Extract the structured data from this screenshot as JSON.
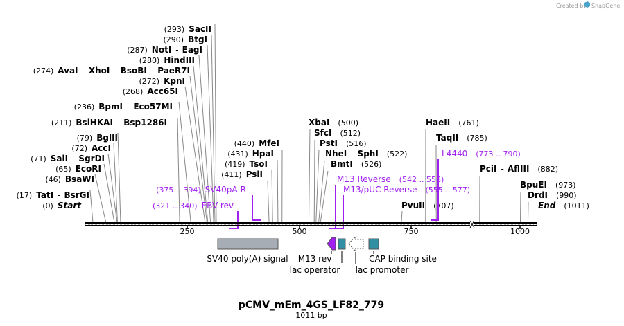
{
  "credit": {
    "prefix": "Created by",
    "brand": "SnapGene"
  },
  "map": {
    "title": "pCMV_mEm_4GS_LF82_779",
    "length_label": "1011 bp",
    "length": 1011,
    "ticks": [
      {
        "pos": 250,
        "label": "250"
      },
      {
        "pos": 500,
        "label": "500"
      },
      {
        "pos": 750,
        "label": "750"
      },
      {
        "pos": 1000,
        "label": "1000"
      }
    ],
    "left_groups": [
      {
        "pos_label": "(293)",
        "sites": [
          {
            "name": "SacII",
            "pos": 293
          }
        ]
      },
      {
        "pos_label": "(290)",
        "sites": [
          {
            "name": "BtgI",
            "pos": 290
          }
        ]
      },
      {
        "pos_label": "(287)",
        "sites": [
          {
            "name": "NotI",
            "pos": 287
          },
          {
            "name": "EagI",
            "pos": 287
          }
        ]
      },
      {
        "pos_label": "(280)",
        "sites": [
          {
            "name": "HindIII",
            "pos": 280
          }
        ]
      },
      {
        "pos_label": "(274)",
        "sites": [
          {
            "name": "AvaI",
            "pos": 274
          },
          {
            "name": "XhoI",
            "pos": 274
          },
          {
            "name": "BsoBI",
            "pos": 274
          },
          {
            "name": "PaeR7I",
            "pos": 274
          }
        ]
      },
      {
        "pos_label": "(272)",
        "sites": [
          {
            "name": "KpnI",
            "pos": 272
          }
        ]
      },
      {
        "pos_label": "(268)",
        "sites": [
          {
            "name": "Acc65I",
            "pos": 268
          }
        ]
      },
      {
        "pos_label": "(236)",
        "sites": [
          {
            "name": "BpmI",
            "pos": 236
          },
          {
            "name": "Eco57MI",
            "pos": 236
          }
        ]
      },
      {
        "pos_label": "(211)",
        "sites": [
          {
            "name": "BsiHKAI",
            "pos": 211
          },
          {
            "name": "Bsp1286I",
            "pos": 211
          }
        ]
      },
      {
        "pos_label": "(79)",
        "sites": [
          {
            "name": "BglII",
            "pos": 79
          }
        ]
      },
      {
        "pos_label": "(72)",
        "sites": [
          {
            "name": "AccI",
            "pos": 72
          }
        ]
      },
      {
        "pos_label": "(71)",
        "sites": [
          {
            "name": "SalI",
            "pos": 71
          },
          {
            "name": "SgrDI",
            "pos": 71
          }
        ]
      },
      {
        "pos_label": "(65)",
        "sites": [
          {
            "name": "EcoRI",
            "pos": 65
          }
        ]
      },
      {
        "pos_label": "(46)",
        "sites": [
          {
            "name": "BsaWI",
            "pos": 46
          }
        ]
      },
      {
        "pos_label": "(17)",
        "sites": [
          {
            "name": "TatI",
            "pos": 17
          },
          {
            "name": "BsrGI",
            "pos": 17
          }
        ]
      }
    ],
    "start_label": {
      "pos_label": "(0)",
      "name": "Start"
    },
    "mid_groups": [
      {
        "pos_label": "(440)",
        "sites": [
          {
            "name": "MfeI",
            "pos": 440
          }
        ]
      },
      {
        "pos_label": "(431)",
        "sites": [
          {
            "name": "HpaI",
            "pos": 431
          }
        ]
      },
      {
        "pos_label": "(419)",
        "sites": [
          {
            "name": "TsoI",
            "pos": 419
          }
        ]
      },
      {
        "pos_label": "(411)",
        "sites": [
          {
            "name": "PsiI",
            "pos": 411
          }
        ]
      }
    ],
    "right_groups": [
      {
        "pos_label": "(500)",
        "sites": [
          {
            "name": "XbaI",
            "pos": 500
          }
        ]
      },
      {
        "pos_label": "(512)",
        "sites": [
          {
            "name": "SfcI",
            "pos": 512
          }
        ]
      },
      {
        "pos_label": "(516)",
        "sites": [
          {
            "name": "PstI",
            "pos": 516
          }
        ]
      },
      {
        "pos_label": "(522)",
        "sites": [
          {
            "name": "NheI",
            "pos": 522
          },
          {
            "name": "SphI",
            "pos": 522
          }
        ]
      },
      {
        "pos_label": "(526)",
        "sites": [
          {
            "name": "BmtI",
            "pos": 526
          }
        ]
      },
      {
        "pos_label": "(707)",
        "sites": [
          {
            "name": "PvuII",
            "pos": 707
          }
        ]
      },
      {
        "pos_label": "(761)",
        "sites": [
          {
            "name": "HaeII",
            "pos": 761
          }
        ]
      },
      {
        "pos_label": "(785)",
        "sites": [
          {
            "name": "TaqII",
            "pos": 785
          }
        ]
      },
      {
        "pos_label": "(882)",
        "sites": [
          {
            "name": "PciI",
            "pos": 882
          },
          {
            "name": "AflIII",
            "pos": 882
          }
        ]
      },
      {
        "pos_label": "(973)",
        "sites": [
          {
            "name": "BpuEI",
            "pos": 973
          }
        ]
      },
      {
        "pos_label": "(990)",
        "sites": [
          {
            "name": "DrdI",
            "pos": 990
          }
        ]
      }
    ],
    "end_label": {
      "name": "End",
      "pos_label": "(1011)"
    },
    "primers": [
      {
        "name": "SV40pA-R",
        "range": "(375 .. 394)",
        "start": 375,
        "end": 394,
        "direction": "reverse"
      },
      {
        "name": "EBV-rev",
        "range": "(321 .. 340)",
        "start": 321,
        "end": 340,
        "direction": "reverse"
      },
      {
        "name": "M13 Reverse",
        "range": "(542 .. 558)",
        "start": 542,
        "end": 558,
        "direction": "reverse"
      },
      {
        "name": "M13/pUC Reverse",
        "range": "(555 .. 577)",
        "start": 555,
        "end": 577,
        "direction": "reverse"
      },
      {
        "name": "L4440",
        "range": "(773 .. 790)",
        "start": 773,
        "end": 790,
        "direction": "reverse"
      }
    ],
    "features": [
      {
        "name": "SV40 poly(A) signal",
        "color": "#a6adb4"
      },
      {
        "name": "M13 rev",
        "color": "#a020f0"
      },
      {
        "name": "lac operator",
        "color": "#2f8fa3"
      },
      {
        "name": "lac promoter",
        "color": "#ffffff"
      },
      {
        "name": "CAP binding site",
        "color": "#2f8fa3"
      }
    ]
  }
}
